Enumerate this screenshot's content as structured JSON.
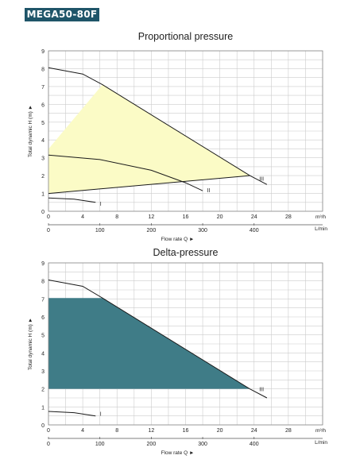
{
  "header": {
    "model_label": "MEGA50-80F"
  },
  "colors": {
    "badge_bg": "#1f5569",
    "prop_fill": "#fbfbc6",
    "delta_fill": "#3f7c87",
    "grid": "#cccccc",
    "curve": "#1a1a1a"
  },
  "chart_data": [
    {
      "type": "line",
      "title": "Proportional pressure",
      "ylabel": "Total dynamic H (m) ►",
      "xlabel": "Flow rate Q ►",
      "x_unit_top": "m³/h",
      "x_unit_bottom": "L/min",
      "xlim": [
        0,
        32
      ],
      "ylim": [
        0,
        9
      ],
      "grid": true,
      "x_ticks_top": [
        "0",
        "4",
        "8",
        "12",
        "16",
        "20",
        "24",
        "28"
      ],
      "x_ticks_top_values": [
        0,
        4,
        8,
        12,
        16,
        20,
        24,
        28
      ],
      "x_ticks_bottom": [
        "0",
        "100",
        "200",
        "300",
        "400"
      ],
      "x_ticks_bottom_values": [
        0,
        100,
        200,
        300,
        400
      ],
      "y_ticks": [
        "0",
        "1",
        "2",
        "3",
        "4",
        "5",
        "6",
        "7",
        "8",
        "9"
      ],
      "y_ticks_values": [
        0,
        1,
        2,
        3,
        4,
        5,
        6,
        7,
        8,
        9
      ],
      "region": {
        "points": [
          [
            0,
            3.5
          ],
          [
            6.3,
            7.1
          ],
          [
            23.5,
            2.0
          ],
          [
            0,
            1.0
          ]
        ]
      },
      "series": [
        {
          "name": "I",
          "points": [
            [
              0,
              0.75
            ],
            [
              3,
              0.68
            ],
            [
              5.5,
              0.5
            ]
          ]
        },
        {
          "name": "II",
          "points": [
            [
              0,
              3.15
            ],
            [
              6,
              2.9
            ],
            [
              12,
              2.3
            ],
            [
              16,
              1.6
            ],
            [
              18,
              1.15
            ]
          ]
        },
        {
          "name": "III",
          "points": [
            [
              0,
              8.05
            ],
            [
              4,
              7.7
            ],
            [
              6.3,
              7.1
            ],
            [
              23.5,
              2.0
            ],
            [
              25.5,
              1.5
            ]
          ]
        },
        {
          "points": [
            [
              0,
              1.0
            ],
            [
              23.5,
              2.0
            ]
          ]
        }
      ],
      "label_positions": {
        "I": [
          6,
          0.45
        ],
        "II": [
          18.5,
          1.2
        ],
        "III": [
          24.6,
          1.85
        ]
      }
    },
    {
      "type": "line",
      "title": "Delta-pressure",
      "ylabel": "Total dynamic H (m) ►",
      "xlabel": "Flow rate Q ►",
      "x_unit_top": "m³/h",
      "x_unit_bottom": "L/min",
      "xlim": [
        0,
        32
      ],
      "ylim": [
        0,
        9
      ],
      "grid": true,
      "x_ticks_top": [
        "0",
        "4",
        "8",
        "12",
        "16",
        "20",
        "24",
        "28"
      ],
      "x_ticks_top_values": [
        0,
        4,
        8,
        12,
        16,
        20,
        24,
        28
      ],
      "x_ticks_bottom": [
        "0",
        "100",
        "200",
        "300",
        "400"
      ],
      "x_ticks_bottom_values": [
        0,
        100,
        200,
        300,
        400
      ],
      "y_ticks": [
        "0",
        "1",
        "2",
        "3",
        "4",
        "5",
        "6",
        "7",
        "8",
        "9"
      ],
      "y_ticks_values": [
        0,
        1,
        2,
        3,
        4,
        5,
        6,
        7,
        8,
        9
      ],
      "region": {
        "points": [
          [
            0,
            7.05
          ],
          [
            6.3,
            7.05
          ],
          [
            23.5,
            2.0
          ],
          [
            0,
            2.0
          ]
        ]
      },
      "series": [
        {
          "name": "I",
          "points": [
            [
              0,
              0.75
            ],
            [
              3,
              0.68
            ],
            [
              5.5,
              0.5
            ]
          ]
        },
        {
          "name": "III",
          "points": [
            [
              0,
              8.05
            ],
            [
              4,
              7.7
            ],
            [
              6.3,
              7.05
            ],
            [
              23.5,
              2.0
            ],
            [
              25.5,
              1.5
            ]
          ]
        }
      ],
      "label_positions": {
        "I": [
          6,
          0.65
        ],
        "III": [
          24.6,
          2.0
        ]
      }
    }
  ]
}
